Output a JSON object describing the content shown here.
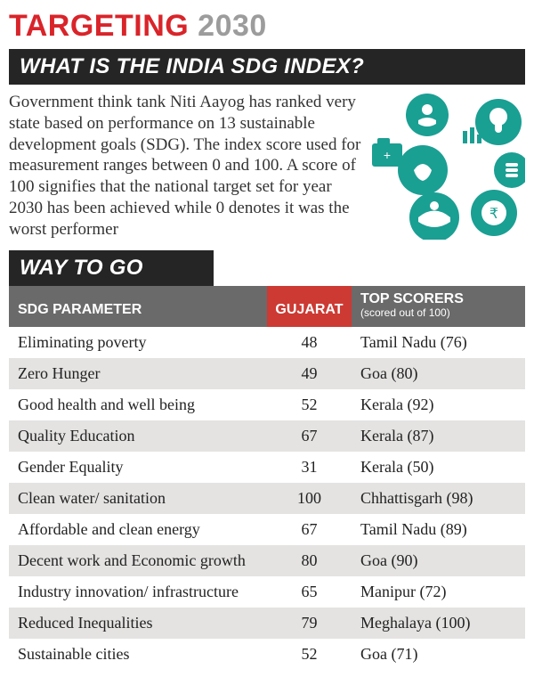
{
  "title": {
    "red": "TARGETING",
    "gray": "2030"
  },
  "subhead_question": "WHAT IS THE INDIA SDG INDEX?",
  "intro": "Government think tank Niti Aayog has ranked very state based on performance on 13 sustainable development goals (SDG). The index score used for measurement ranges between 0 and 100. A score of 100 signifies that the national target set for year 2030 has been achieved while 0 denotes it was the worst performer",
  "way_to_go": "WAY TO GO",
  "headers": {
    "param": "SDG PARAMETER",
    "gujarat": "GUJARAT",
    "top_scorers": "TOP SCORERS",
    "top_scorers_sub": "(scored out of 100)"
  },
  "rows": [
    {
      "param": "Eliminating poverty",
      "gujarat": "48",
      "top": "Tamil Nadu (76)"
    },
    {
      "param": "Zero Hunger",
      "gujarat": "49",
      "top": "Goa (80)"
    },
    {
      "param": "Good health and well being",
      "gujarat": "52",
      "top": "Kerala (92)"
    },
    {
      "param": "Quality Education",
      "gujarat": "67",
      "top": "Kerala (87)"
    },
    {
      "param": "Gender Equality",
      "gujarat": "31",
      "top": "Kerala (50)"
    },
    {
      "param": "Clean water/ sanitation",
      "gujarat": "100",
      "top": "Chhattisgarh (98)"
    },
    {
      "param": "Affordable and clean energy",
      "gujarat": "67",
      "top": "Tamil Nadu (89)"
    },
    {
      "param": "Decent work and Economic growth",
      "gujarat": "80",
      "top": "Goa (90)"
    },
    {
      "param": "Industry innovation/ infrastructure",
      "gujarat": "65",
      "top": "Manipur (72)"
    },
    {
      "param": "Reduced Inequalities",
      "gujarat": "79",
      "top": "Meghalaya (100)"
    },
    {
      "param": "Sustainable cities",
      "gujarat": "52",
      "top": "Goa (71)"
    }
  ],
  "colors": {
    "red": "#d9242a",
    "gray_title": "#9c9c9c",
    "bar_dark": "#252525",
    "th_gray": "#6a6a6a",
    "th_red": "#cc3a33",
    "stripe": "#e4e3e2",
    "sdg_teal": "#1a9f93"
  }
}
